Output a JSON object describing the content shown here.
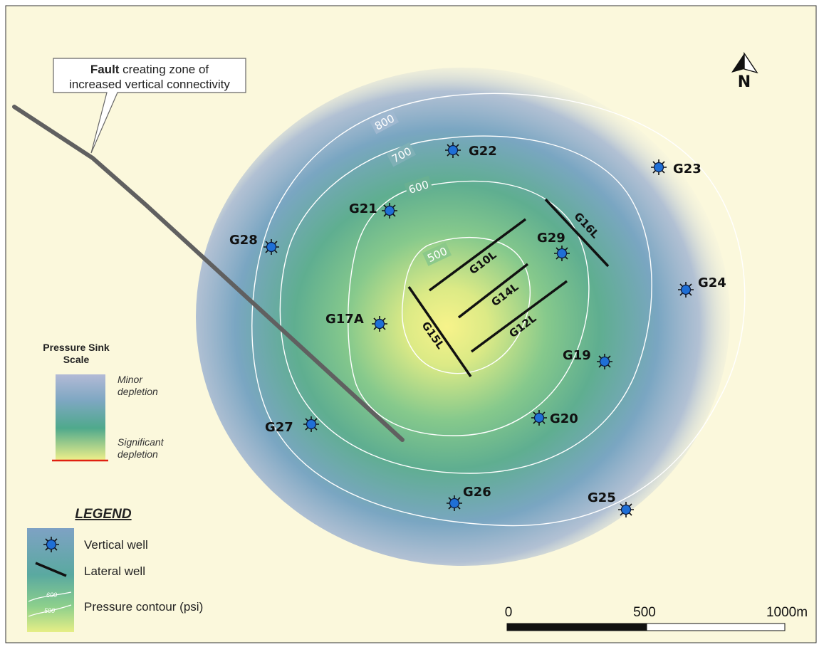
{
  "callout": {
    "bold": "Fault",
    "line1_rest": " creating zone of",
    "line2": "increased vertical connectivity"
  },
  "contours": [
    {
      "value": "800"
    },
    {
      "value": "700"
    },
    {
      "value": "600"
    },
    {
      "value": "500"
    }
  ],
  "vertical_wells": [
    {
      "name": "G22"
    },
    {
      "name": "G23"
    },
    {
      "name": "G21"
    },
    {
      "name": "G28"
    },
    {
      "name": "G29"
    },
    {
      "name": "G24"
    },
    {
      "name": "G17A"
    },
    {
      "name": "G19"
    },
    {
      "name": "G20"
    },
    {
      "name": "G27"
    },
    {
      "name": "G26"
    },
    {
      "name": "G25"
    }
  ],
  "lateral_wells": [
    {
      "name": "G16L"
    },
    {
      "name": "G10L"
    },
    {
      "name": "G14L"
    },
    {
      "name": "G12L"
    },
    {
      "name": "G15L"
    }
  ],
  "scale_panel": {
    "title_line1": "Pressure Sink",
    "title_line2": "Scale",
    "top_label_1": "Minor",
    "top_label_2": "depletion",
    "bottom_label_1": "Significant",
    "bottom_label_2": "depletion"
  },
  "legend": {
    "title": "LEGEND",
    "vertical": "Vertical well",
    "lateral": "Lateral well",
    "contour": "Pressure contour (psi)",
    "sample_600": "600",
    "sample_500": "500"
  },
  "scale_bar": {
    "label_0": "0",
    "label_mid": "500",
    "label_end": "1000m"
  },
  "north": {
    "label": "N"
  },
  "colors": {
    "background": "#fbf8dc",
    "center": "#eef08a",
    "mid": "#4fae8e",
    "outer": "#7ea7c9",
    "well_fill": "#1f6fd6",
    "fault": "#606060",
    "scale_red": "#e02010"
  }
}
